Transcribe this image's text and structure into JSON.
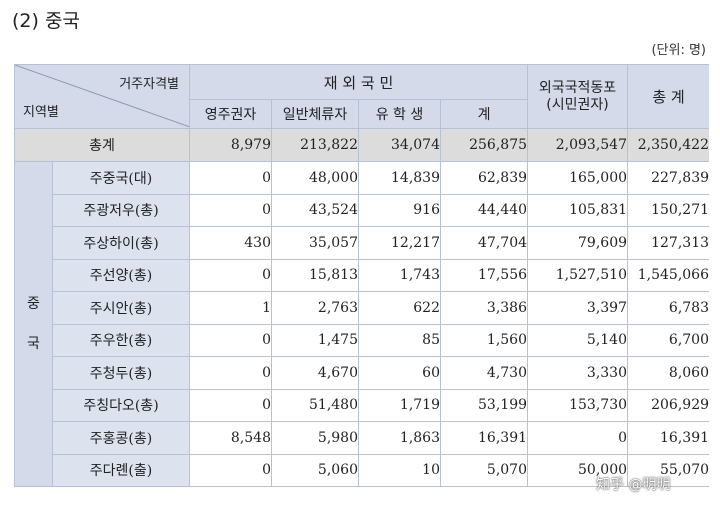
{
  "heading": "(2) 중국",
  "unit": "(단위: 명)",
  "header": {
    "corner_top": "거주자격별",
    "corner_bottom": "지역별",
    "group": "재 외 국 민",
    "cols": [
      "영주권자",
      "일반체류자",
      "유 학 생",
      "계"
    ],
    "foreign": "외국국적동포\n(시민권자)",
    "total": "총 계"
  },
  "total_row": {
    "label": "총계",
    "values": [
      "8,979",
      "213,822",
      "34,074",
      "256,875",
      "2,093,547",
      "2,350,422"
    ]
  },
  "region": "중\n\n국",
  "rows": [
    {
      "name": "주중국(대)",
      "values": [
        "0",
        "48,000",
        "14,839",
        "62,839",
        "165,000",
        "227,839"
      ]
    },
    {
      "name": "주광저우(총)",
      "values": [
        "0",
        "43,524",
        "916",
        "44,440",
        "105,831",
        "150,271"
      ]
    },
    {
      "name": "주상하이(총)",
      "values": [
        "430",
        "35,057",
        "12,217",
        "47,704",
        "79,609",
        "127,313"
      ]
    },
    {
      "name": "주선양(총)",
      "values": [
        "0",
        "15,813",
        "1,743",
        "17,556",
        "1,527,510",
        "1,545,066"
      ]
    },
    {
      "name": "주시안(총)",
      "values": [
        "1",
        "2,763",
        "622",
        "3,386",
        "3,397",
        "6,783"
      ]
    },
    {
      "name": "주우한(총)",
      "values": [
        "0",
        "1,475",
        "85",
        "1,560",
        "5,140",
        "6,700"
      ]
    },
    {
      "name": "주청두(총)",
      "values": [
        "0",
        "4,670",
        "60",
        "4,730",
        "3,330",
        "8,060"
      ]
    },
    {
      "name": "주칭다오(총)",
      "values": [
        "0",
        "51,480",
        "1,719",
        "53,199",
        "153,730",
        "206,929"
      ]
    },
    {
      "name": "주홍콩(총)",
      "values": [
        "8,548",
        "5,980",
        "1,863",
        "16,391",
        "0",
        "16,391"
      ]
    },
    {
      "name": "주다롄(출)",
      "values": [
        "0",
        "5,060",
        "10",
        "5,070",
        "50,000",
        "55,070"
      ]
    }
  ],
  "watermark": "知乎 @明明"
}
